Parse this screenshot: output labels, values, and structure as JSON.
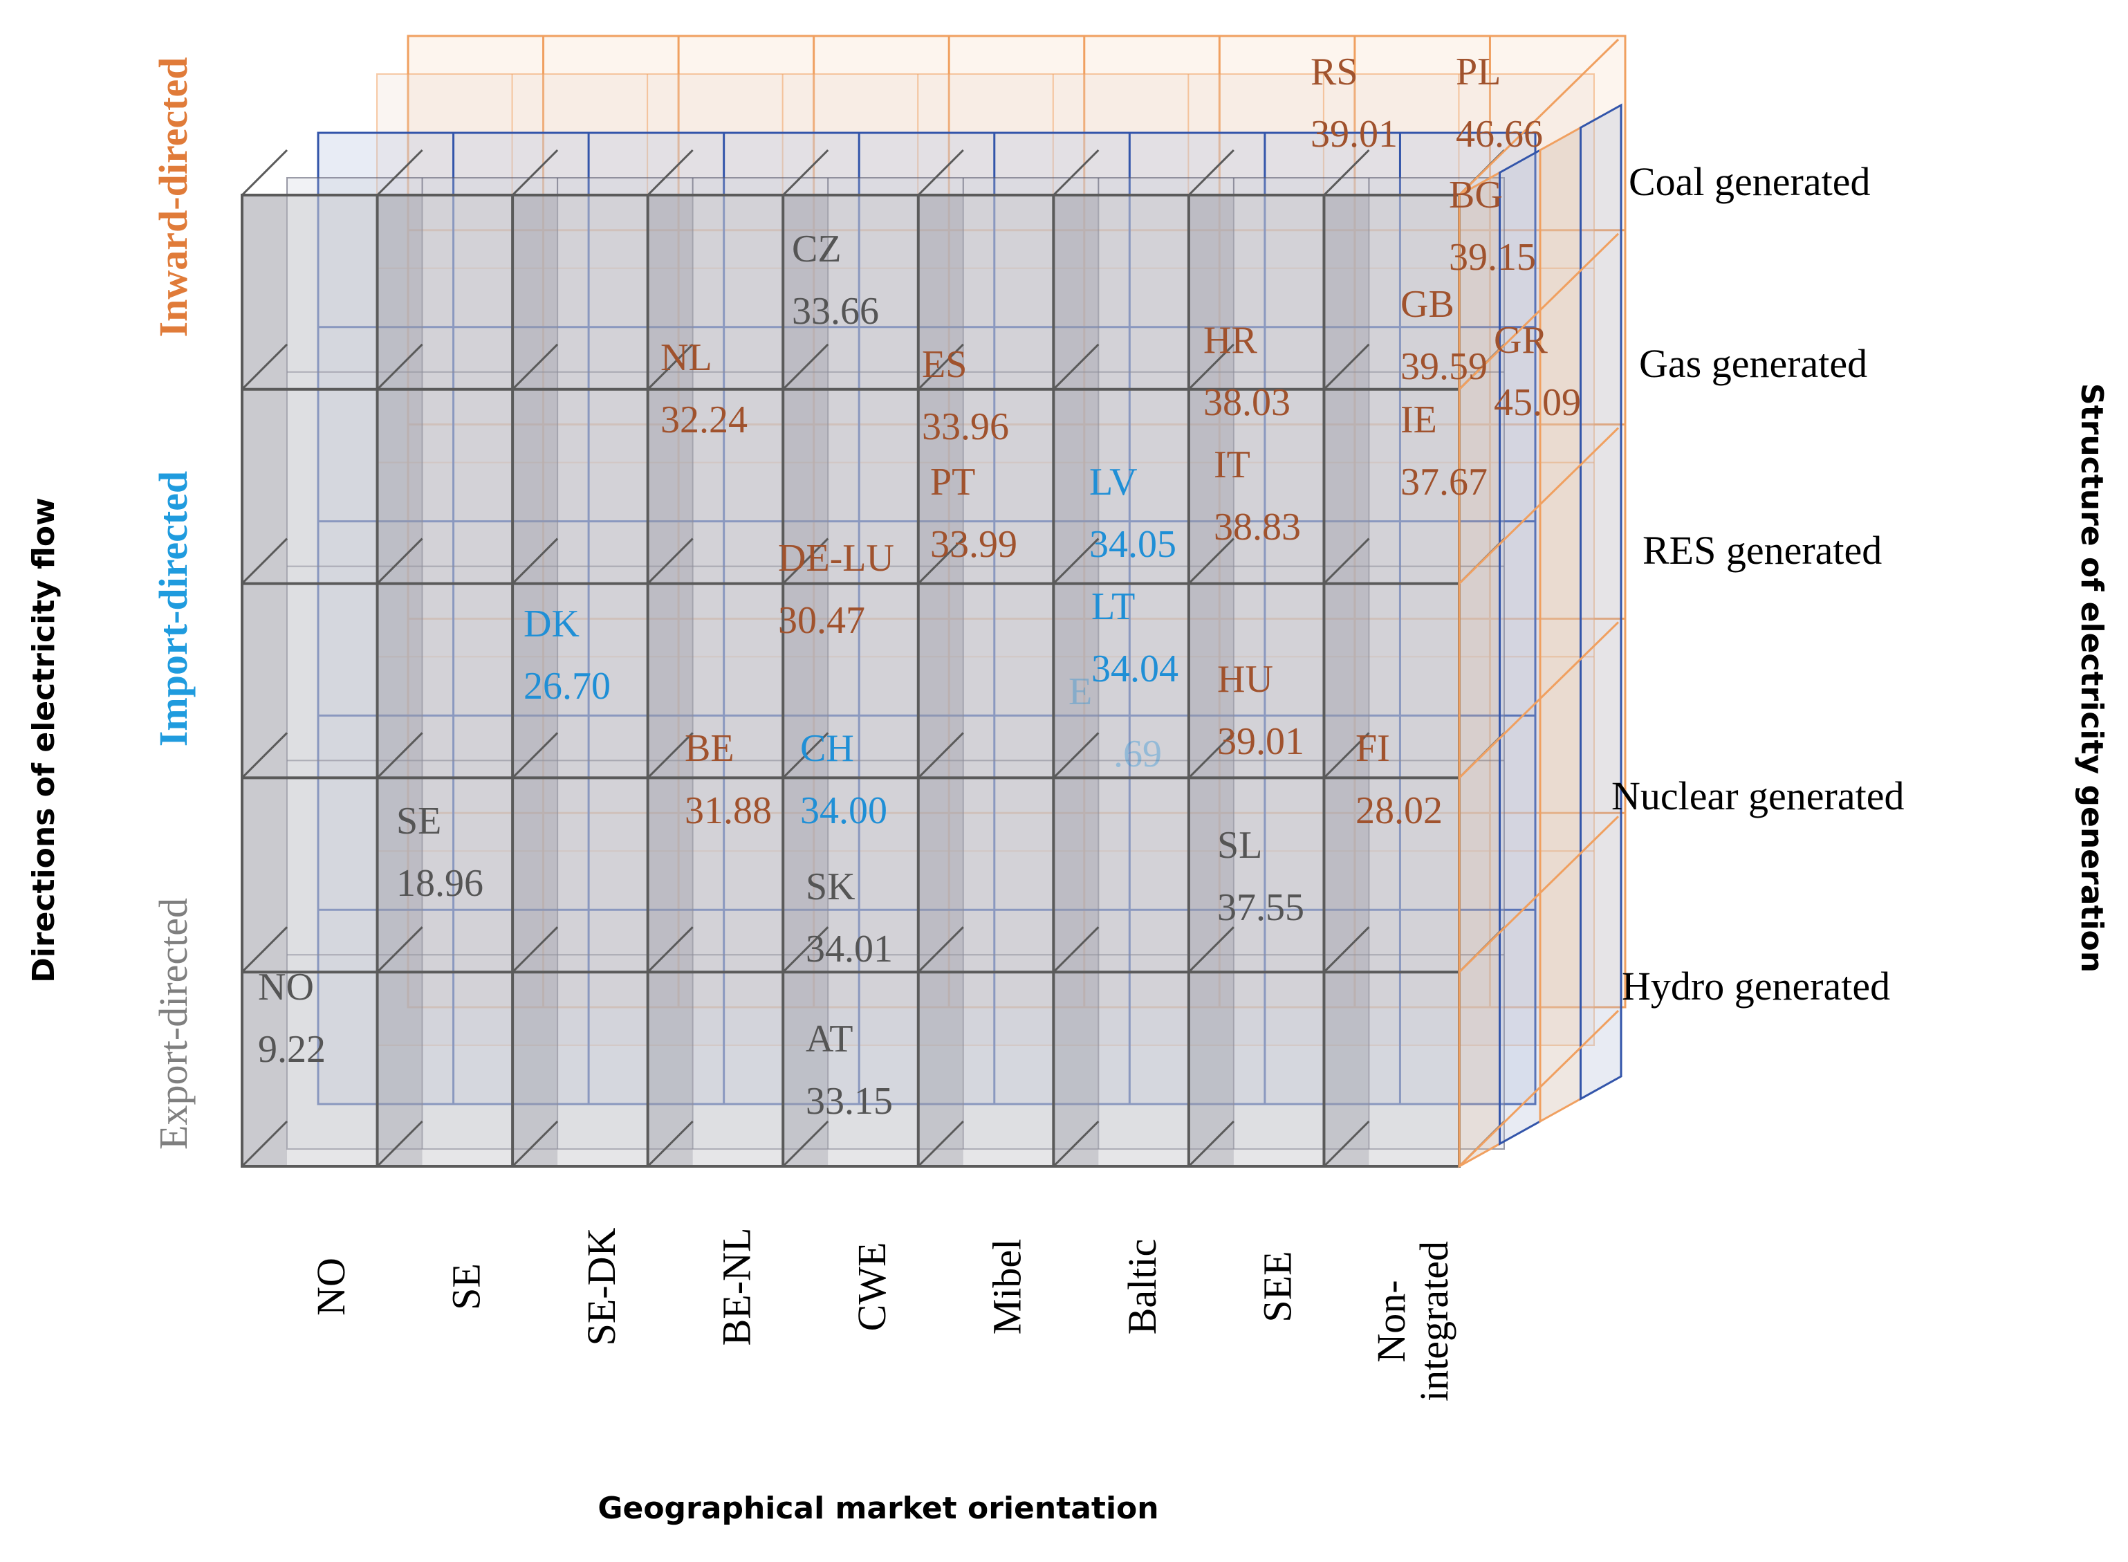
{
  "axes": {
    "x_title": "Geographical market orientation",
    "y_title": "Directions of electricity flow",
    "z_title": "Structure of electricity generation"
  },
  "flow_directions": [
    {
      "label": "Inward-directed",
      "color": "#e07b39"
    },
    {
      "label": "Import-directed",
      "color": "#1f9bde"
    },
    {
      "label": "Export-directed",
      "color": "#7f7f7f"
    }
  ],
  "generation_types": [
    "Coal generated",
    "Gas generated",
    "RES generated",
    "Nuclear generated",
    "Hydro generated"
  ],
  "market_columns": [
    "NO",
    "SE",
    "SE-DK",
    "BE-NL",
    "CWE",
    "Mibel",
    "Baltic",
    "SEE",
    "Non-\nintegrated"
  ],
  "colors": {
    "inward": "#a0522d",
    "import": "#1f8fd6",
    "export": "#555555",
    "front_grid": "#5a5a5a",
    "middle_grid": "#3355aa",
    "back_grid": "#f0a060"
  },
  "countries": [
    {
      "code": "RS",
      "value": "39.01",
      "group": "inward"
    },
    {
      "code": "PL",
      "value": "46.66",
      "group": "inward"
    },
    {
      "code": "BG",
      "value": "39.15",
      "group": "inward"
    },
    {
      "code": "CZ",
      "value": "33.66",
      "group": "export"
    },
    {
      "code": "NL",
      "value": "32.24",
      "group": "inward"
    },
    {
      "code": "ES",
      "value": "33.96",
      "group": "inward"
    },
    {
      "code": "HR",
      "value": "38.03",
      "group": "inward"
    },
    {
      "code": "GB",
      "value": "39.59",
      "group": "inward"
    },
    {
      "code": "GR",
      "value": "45.09",
      "group": "inward"
    },
    {
      "code": "IE",
      "value": "37.67",
      "group": "inward"
    },
    {
      "code": "PT",
      "value": "33.99",
      "group": "inward"
    },
    {
      "code": "LV",
      "value": "34.05",
      "group": "import"
    },
    {
      "code": "IT",
      "value": "38.83",
      "group": "inward"
    },
    {
      "code": "DE-LU",
      "value": "30.47",
      "group": "inward"
    },
    {
      "code": "DK",
      "value": "26.70",
      "group": "import"
    },
    {
      "code": "LT",
      "value": "34.04",
      "group": "import"
    },
    {
      "code": "HU",
      "value": "39.01",
      "group": "inward"
    },
    {
      "code": "BE",
      "value": "31.88",
      "group": "inward"
    },
    {
      "code": "CH",
      "value": "34.00",
      "group": "import"
    },
    {
      "code": "FI",
      "value": "28.02",
      "group": "inward"
    },
    {
      "code": "SE",
      "value": "18.96",
      "group": "export"
    },
    {
      "code": "SK",
      "value": "34.01",
      "group": "export"
    },
    {
      "code": "SL",
      "value": "37.55",
      "group": "export"
    },
    {
      "code": "NO",
      "value": "9.22",
      "group": "export"
    },
    {
      "code": "AT",
      "value": "33.15",
      "group": "export"
    }
  ],
  "faint_label": {
    "code": "E",
    "value": ".69"
  }
}
